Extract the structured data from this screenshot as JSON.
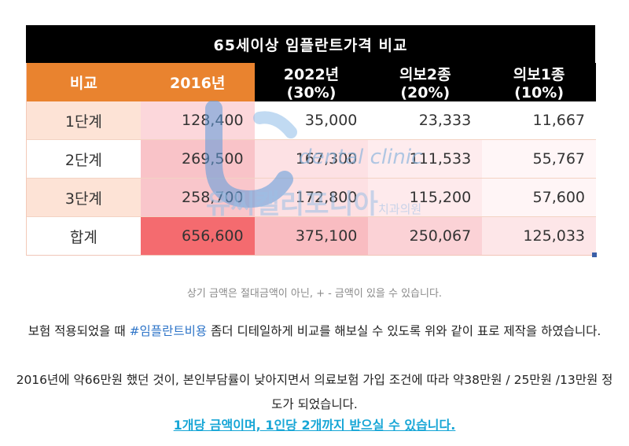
{
  "table": {
    "title": "65세이상 임플란트가격  비교",
    "headers": [
      "비교",
      "2016년",
      "2022년(30%)",
      "의보2종(20%)",
      "의보1종(10%)"
    ],
    "rows": [
      {
        "label": "1단계",
        "values": [
          "128,400",
          "35,000",
          "23,333",
          "11,667"
        ]
      },
      {
        "label": "2단계",
        "values": [
          "269,500",
          "167,300",
          "111,533",
          "55,767"
        ]
      },
      {
        "label": "3단계",
        "values": [
          "258,700",
          "172,800",
          "115,200",
          "57,600"
        ]
      },
      {
        "label": "합계",
        "values": [
          "656,600",
          "375,100",
          "250,067",
          "125,033"
        ]
      }
    ],
    "colors": {
      "header_orange": "#e9832f",
      "header_black": "#000000",
      "label_bg": "#fde3d6",
      "heat_strong": "#f46b6f",
      "heat_mid": "#fbd0d4",
      "heat_light": "#fde8ea"
    }
  },
  "watermark": {
    "english": "dental clinic",
    "korean": "유씨캘리포니아",
    "korean_suffix": "치과의원"
  },
  "caption": "상기 금액은 절대금액이 아닌, + - 금액이 있을 수 있습니다.",
  "paragraph1": {
    "before": "보험 적용되었을 때 ",
    "hashtag": "#임플란트비용",
    "after": " 좀더 디테일하게 비교를 해보실 수 있도록 위와 같이 표로 제작을 하였습니다."
  },
  "paragraph2": "2016년에 약66만원 했던 것이, 본인부담률이 낮아지면서 의료보험 가입 조건에 따라 약38만원 / 25만원 /13만원 정도가 되었습니다.",
  "highlight": "1개당 금액이며, 1인당 2개까지 받으실 수 있습니다."
}
